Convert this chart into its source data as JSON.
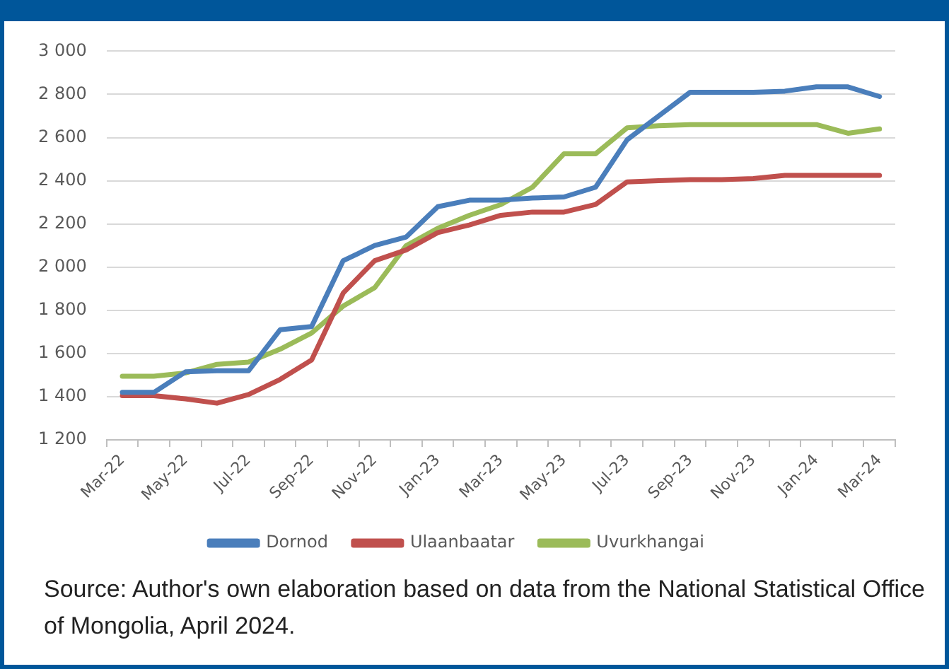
{
  "chart_data": {
    "type": "line",
    "categories": [
      "Mar-22",
      null,
      "May-22",
      null,
      "Jul-22",
      null,
      "Sep-22",
      null,
      "Nov-22",
      null,
      "Jan-23",
      null,
      "Mar-23",
      null,
      "May-23",
      null,
      "Jul-23",
      null,
      "Sep-23",
      null,
      "Nov-23",
      null,
      "Jan-24",
      null,
      "Mar-24"
    ],
    "series": [
      {
        "name": "Dornod",
        "color": "#4a7ebb",
        "values": [
          1420,
          1420,
          1515,
          1520,
          1520,
          1710,
          1725,
          2030,
          2100,
          2140,
          2280,
          2310,
          2310,
          2320,
          2325,
          2370,
          2590,
          2700,
          2810,
          2810,
          2810,
          2815,
          2835,
          2835,
          2790
        ]
      },
      {
        "name": "Ulaanbaatar",
        "color": "#c0504d",
        "values": [
          1405,
          1405,
          1390,
          1370,
          1410,
          1480,
          1570,
          1880,
          2030,
          2080,
          2160,
          2195,
          2240,
          2255,
          2255,
          2290,
          2395,
          2400,
          2405,
          2405,
          2410,
          2425,
          2425,
          2425,
          2425
        ]
      },
      {
        "name": "Uvurkhangai",
        "color": "#9bbb59",
        "values": [
          1495,
          1495,
          1510,
          1550,
          1560,
          1620,
          1695,
          1820,
          1905,
          2100,
          2180,
          2240,
          2290,
          2370,
          2525,
          2525,
          2645,
          2655,
          2660,
          2660,
          2660,
          2660,
          2660,
          2620,
          2640
        ]
      }
    ],
    "ylim": [
      1200,
      3000
    ],
    "yticks": [
      {
        "value": 1200,
        "label": "1 200"
      },
      {
        "value": 1400,
        "label": "1 400"
      },
      {
        "value": 1600,
        "label": "1 600"
      },
      {
        "value": 1800,
        "label": "1 800"
      },
      {
        "value": 2000,
        "label": "2 000"
      },
      {
        "value": 2200,
        "label": "2 200"
      },
      {
        "value": 2400,
        "label": "2 400"
      },
      {
        "value": 2600,
        "label": "2 600"
      },
      {
        "value": 2800,
        "label": "2 800"
      },
      {
        "value": 3000,
        "label": "3 000"
      }
    ],
    "grid": "y",
    "legend": "bottom",
    "marker": "none",
    "line_style": "solid",
    "annotations": [
      "Source: Author's own elaboration based on data from the National Statistical Office of Mongolia, April 2024."
    ]
  }
}
